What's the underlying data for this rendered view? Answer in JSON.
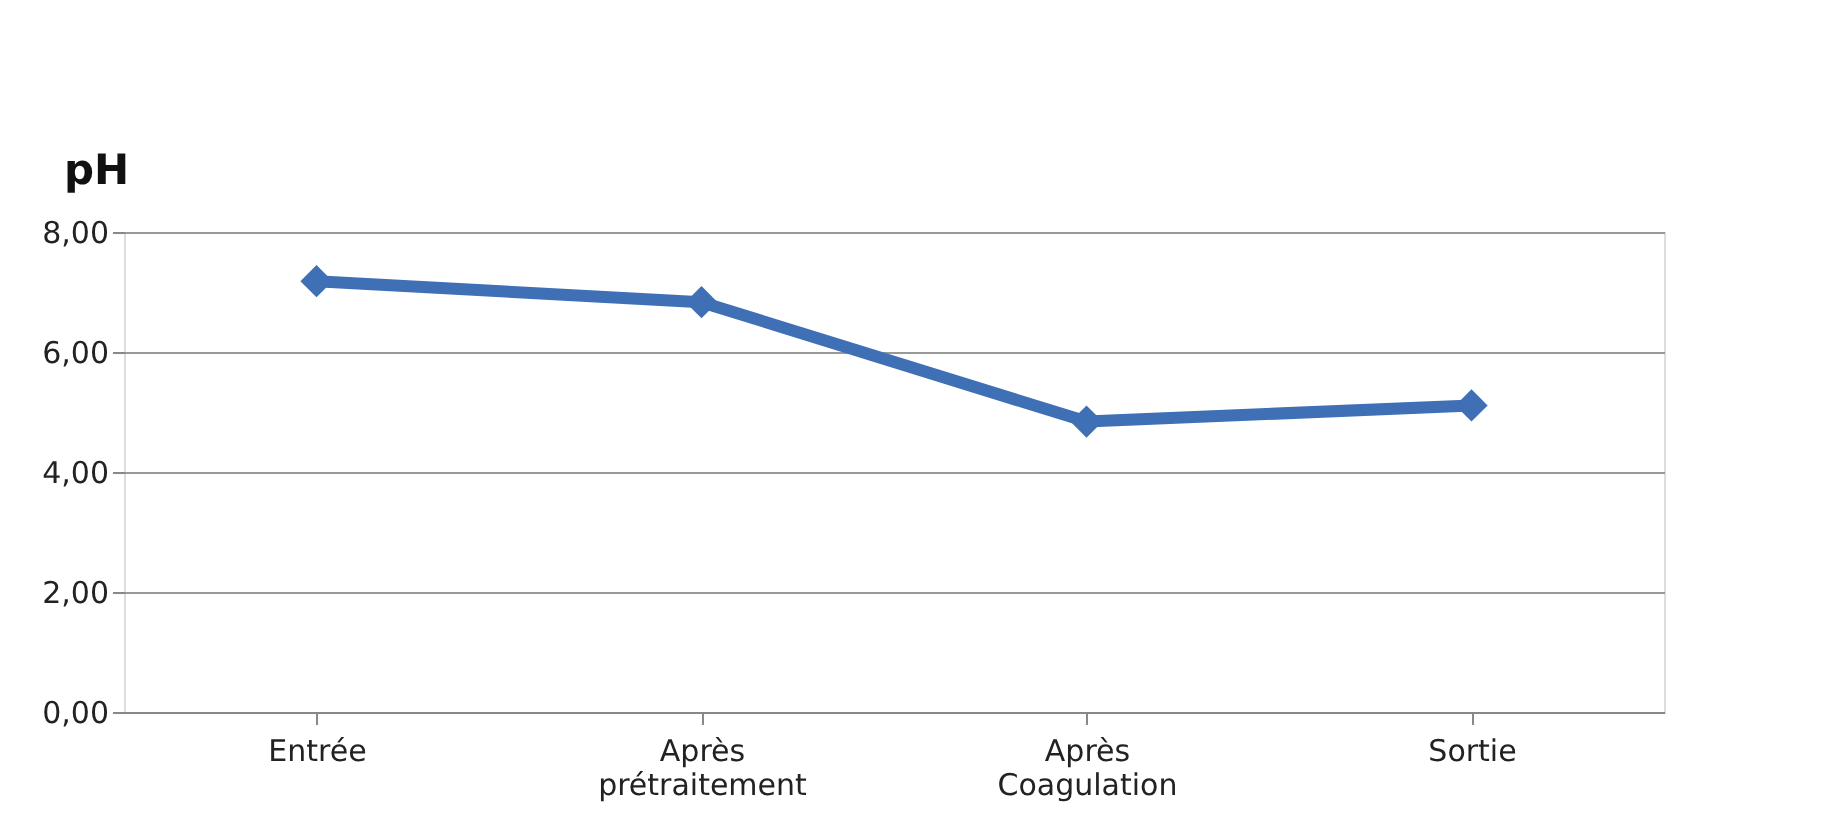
{
  "chart_data": {
    "type": "line",
    "ylabel": "pH",
    "categories": [
      "Entrée",
      "Après prétraitement",
      "Après Coagulation",
      "Sortie"
    ],
    "series": [
      {
        "color": "#3f6fb5",
        "values": [
          7.18,
          6.83,
          4.84,
          5.11
        ]
      }
    ],
    "ylim": [
      0,
      8
    ],
    "yticks": [
      {
        "value": 0,
        "label": "0,00"
      },
      {
        "value": 2,
        "label": "2,00"
      },
      {
        "value": 4,
        "label": "4,00"
      },
      {
        "value": 6,
        "label": "6,00"
      },
      {
        "value": 8,
        "label": "8,00"
      }
    ],
    "grid": "y",
    "marker": "diamond",
    "line_style": "solid"
  }
}
